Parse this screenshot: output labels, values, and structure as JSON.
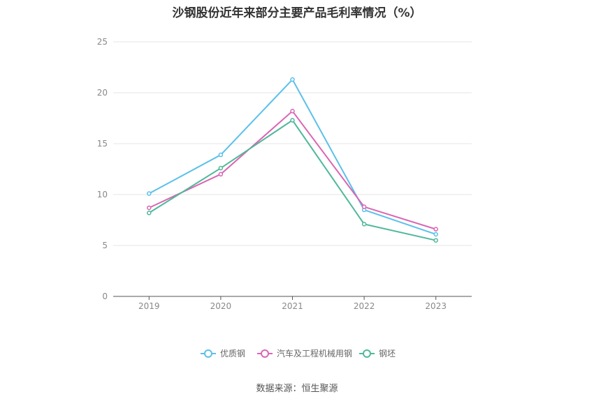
{
  "title": "沙钢股份近年来部分主要产品毛利率情况（%）",
  "source": "数据来源：恒生聚源",
  "chart_data": {
    "type": "line",
    "title": "沙钢股份近年来部分主要产品毛利率情况（%）",
    "xlabel": "",
    "ylabel": "",
    "categories": [
      "2019",
      "2020",
      "2021",
      "2022",
      "2023"
    ],
    "ylim": [
      0,
      25
    ],
    "yticks": [
      0,
      5,
      10,
      15,
      20,
      25
    ],
    "grid": true,
    "legend_position": "bottom",
    "series": [
      {
        "name": "优质钢",
        "color": "#5bc0eb",
        "values": [
          10.1,
          13.9,
          21.3,
          8.5,
          6.1
        ]
      },
      {
        "name": "汽车及工程机械用钢",
        "color": "#d966b3",
        "values": [
          8.7,
          12.0,
          18.2,
          8.8,
          6.6
        ]
      },
      {
        "name": "钢坯",
        "color": "#4fb89a",
        "values": [
          8.2,
          12.6,
          17.3,
          7.1,
          5.5
        ]
      }
    ]
  }
}
